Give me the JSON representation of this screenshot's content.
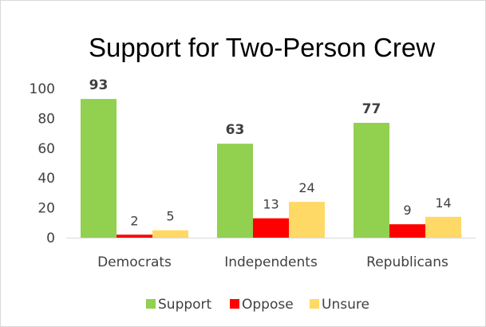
{
  "chart_data": {
    "type": "bar",
    "title": "Support for Two-Person Crew",
    "categories": [
      "Democrats",
      "Independents",
      "Republicans"
    ],
    "series": [
      {
        "name": "Support",
        "values": [
          93,
          63,
          77
        ],
        "color": "#92d050",
        "label_bold": true
      },
      {
        "name": "Oppose",
        "values": [
          2,
          13,
          9
        ],
        "color": "#ff0000",
        "label_bold": false
      },
      {
        "name": "Unsure",
        "values": [
          5,
          24,
          14
        ],
        "color": "#ffd966",
        "label_bold": false
      }
    ],
    "ylim": [
      0,
      100
    ],
    "yticks": [
      0,
      20,
      40,
      60,
      80,
      100
    ],
    "grid": false,
    "legend": "bottom"
  }
}
